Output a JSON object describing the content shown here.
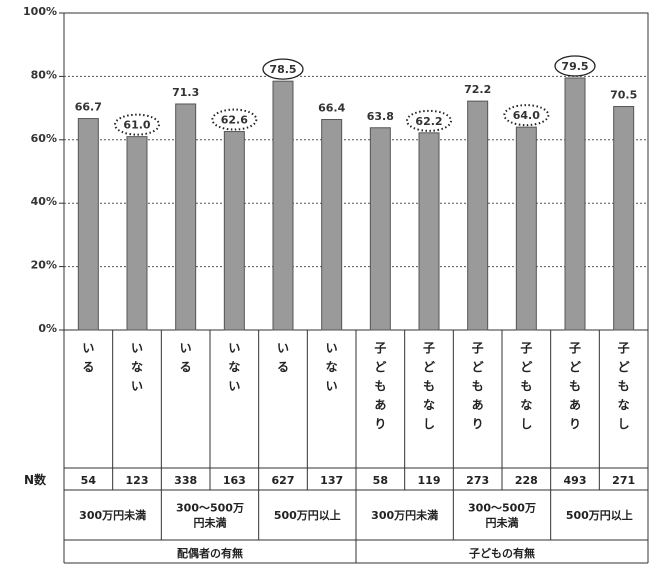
{
  "chart_data": {
    "type": "bar",
    "title": "",
    "xlabel": "",
    "ylabel": "",
    "ylim": [
      0,
      100
    ],
    "y_ticks": [
      "0%",
      "20%",
      "40%",
      "60%",
      "80%",
      "100%"
    ],
    "grid": "dotted-horizontal",
    "colors": {
      "bar": "#9a9a9a",
      "bar_edge": "#555555",
      "grid": "#555555"
    },
    "categories": [
      "いる",
      "いない",
      "いる",
      "いない",
      "いる",
      "いない",
      "子どもあり",
      "子どもなし",
      "子どもあり",
      "子どもなし",
      "子どもあり",
      "子どもなし"
    ],
    "values": [
      66.7,
      61.0,
      71.3,
      62.6,
      78.5,
      66.4,
      63.8,
      62.2,
      72.2,
      64.0,
      79.5,
      70.5
    ],
    "value_labels": [
      "66.7",
      "61.0",
      "71.3",
      "62.6",
      "78.5",
      "66.4",
      "63.8",
      "62.2",
      "72.2",
      "64.0",
      "79.5",
      "70.5"
    ],
    "highlight_dotted": [
      1,
      3,
      7,
      9
    ],
    "highlight_solid": [
      4,
      10
    ],
    "n_label": "N数",
    "n_values": [
      "54",
      "123",
      "338",
      "163",
      "627",
      "137",
      "58",
      "119",
      "273",
      "228",
      "493",
      "271"
    ],
    "income_groups": [
      {
        "label": "300万円未満",
        "span": [
          0,
          1
        ]
      },
      {
        "label_lines": [
          "300〜500万",
          "円未満"
        ],
        "span": [
          2,
          3
        ]
      },
      {
        "label": "500万円以上",
        "span": [
          4,
          5
        ]
      },
      {
        "label": "300万円未満",
        "span": [
          6,
          7
        ]
      },
      {
        "label_lines": [
          "300〜500万",
          "円未満"
        ],
        "span": [
          8,
          9
        ]
      },
      {
        "label": "500万円以上",
        "span": [
          10,
          11
        ]
      }
    ],
    "sections": [
      {
        "label": "配偶者の有無",
        "span": [
          0,
          5
        ]
      },
      {
        "label": "子どもの有無",
        "span": [
          6,
          11
        ]
      }
    ]
  }
}
